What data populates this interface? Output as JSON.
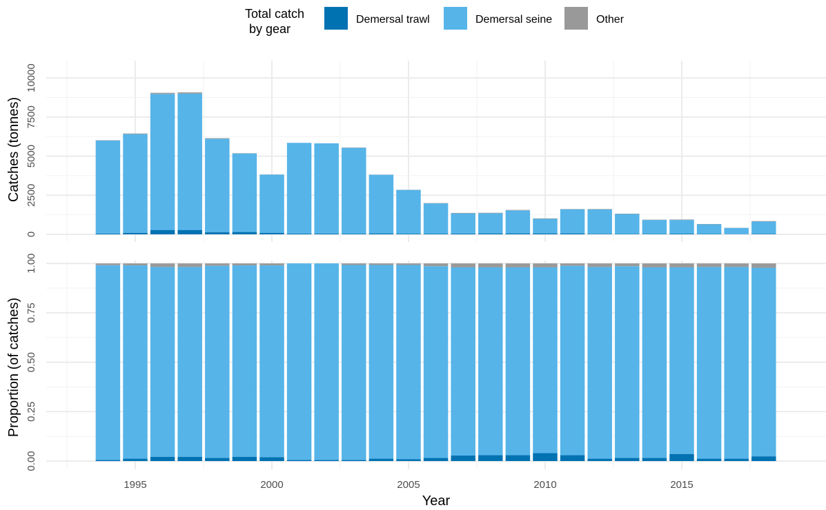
{
  "legend": {
    "title_line1": "Total catch",
    "title_line2": "by gear",
    "items": [
      {
        "label": "Demersal trawl",
        "color": "#0072B2"
      },
      {
        "label": "Demersal seine",
        "color": "#56B4E9"
      },
      {
        "label": "Other",
        "color": "#999999"
      }
    ]
  },
  "chart_data": [
    {
      "type": "bar",
      "stacked": true,
      "ylabel": "Catches (tonnes)",
      "xlabel": "",
      "ylim": [
        0,
        10800
      ],
      "yticks": [
        "0",
        "2500",
        "5000",
        "7500",
        "10000"
      ],
      "grid": true,
      "x": [
        1994,
        1995,
        1996,
        1997,
        1998,
        1999,
        2000,
        2001,
        2002,
        2003,
        2004,
        2005,
        2006,
        2007,
        2008,
        2009,
        2010,
        2011,
        2012,
        2013,
        2014,
        2015,
        2016,
        2017,
        2018
      ],
      "series": [
        {
          "name": "Demersal trawl",
          "color": "#0072B2",
          "values": [
            50,
            90,
            280,
            280,
            130,
            150,
            90,
            50,
            50,
            40,
            60,
            40,
            40,
            50,
            60,
            60,
            60,
            60,
            30,
            20,
            20,
            40,
            20,
            10,
            30
          ]
        },
        {
          "name": "Demersal seine",
          "color": "#56B4E9",
          "values": [
            5950,
            6320,
            8700,
            8720,
            5980,
            5020,
            3730,
            5800,
            5770,
            5490,
            3750,
            2800,
            1940,
            1290,
            1290,
            1470,
            930,
            1540,
            1560,
            1280,
            900,
            880,
            620,
            400,
            790
          ]
        },
        {
          "name": "Other",
          "color": "#999999",
          "values": [
            20,
            40,
            70,
            80,
            40,
            20,
            10,
            0,
            0,
            20,
            10,
            10,
            20,
            30,
            30,
            30,
            30,
            20,
            30,
            20,
            20,
            30,
            20,
            10,
            30
          ]
        }
      ]
    },
    {
      "type": "bar",
      "stacked": true,
      "ylabel": "Proportion (of catches)",
      "xlabel": "Year",
      "ylim": [
        0,
        1.06
      ],
      "yticks": [
        "0.00",
        "0.25",
        "0.50",
        "0.75",
        "1.00"
      ],
      "xticks": [
        "1995",
        "2000",
        "2005",
        "2010",
        "2015"
      ],
      "grid": true,
      "x": [
        1994,
        1995,
        1996,
        1997,
        1998,
        1999,
        2000,
        2001,
        2002,
        2003,
        2004,
        2005,
        2006,
        2007,
        2008,
        2009,
        2010,
        2011,
        2012,
        2013,
        2014,
        2015,
        2016,
        2017,
        2018
      ],
      "series": [
        {
          "name": "Demersal trawl",
          "color": "#0072B2",
          "values": [
            0.006,
            0.012,
            0.022,
            0.022,
            0.016,
            0.022,
            0.02,
            0.006,
            0.006,
            0.006,
            0.012,
            0.01,
            0.016,
            0.028,
            0.03,
            0.03,
            0.04,
            0.03,
            0.012,
            0.016,
            0.016,
            0.036,
            0.012,
            0.012,
            0.024
          ]
        },
        {
          "name": "Demersal seine",
          "color": "#56B4E9",
          "values": [
            0.985,
            0.978,
            0.96,
            0.96,
            0.972,
            0.968,
            0.97,
            0.994,
            0.994,
            0.986,
            0.98,
            0.982,
            0.97,
            0.952,
            0.95,
            0.95,
            0.94,
            0.958,
            0.97,
            0.97,
            0.964,
            0.944,
            0.97,
            0.97,
            0.954
          ]
        },
        {
          "name": "Other",
          "color": "#999999",
          "values": [
            0.009,
            0.01,
            0.018,
            0.018,
            0.012,
            0.01,
            0.01,
            0.0,
            0.0,
            0.008,
            0.008,
            0.008,
            0.014,
            0.02,
            0.02,
            0.02,
            0.02,
            0.012,
            0.018,
            0.014,
            0.02,
            0.02,
            0.018,
            0.018,
            0.022
          ]
        }
      ]
    }
  ]
}
